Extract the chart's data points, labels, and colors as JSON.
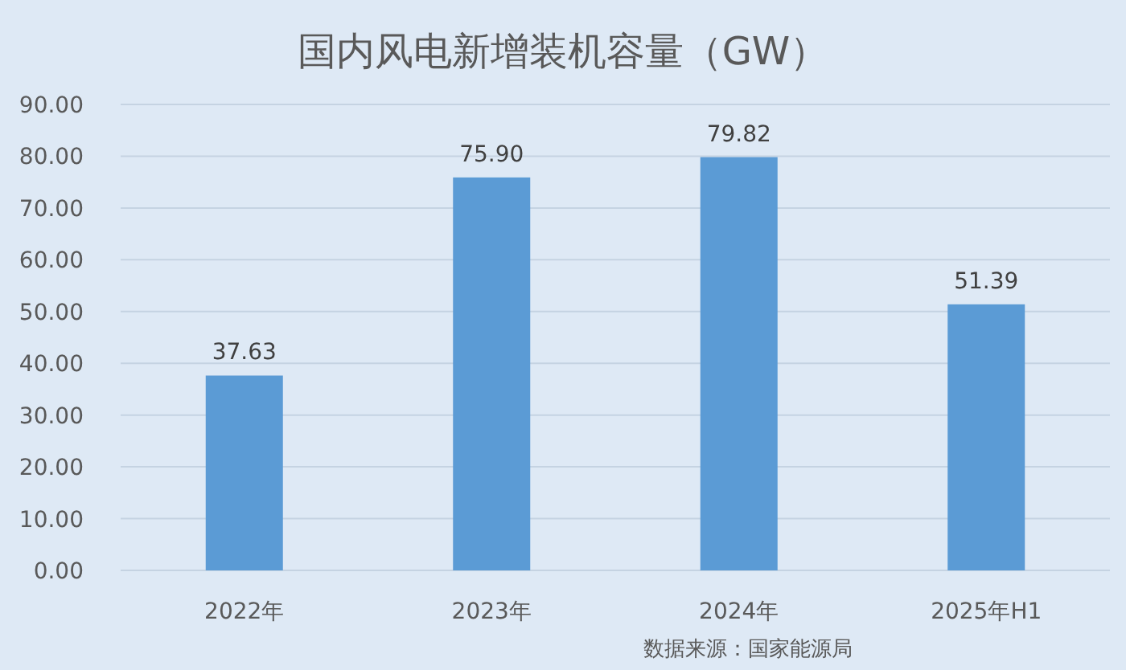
{
  "chart_data": {
    "type": "bar",
    "title": "国内风电新增装机容量（GW）",
    "categories": [
      "2022年",
      "2023年",
      "2024年",
      "2025年H1"
    ],
    "values": [
      37.63,
      75.9,
      79.82,
      51.39
    ],
    "value_labels": [
      "37.63",
      "75.90",
      "79.82",
      "51.39"
    ],
    "color": "#5b9bd5",
    "ylim": [
      0,
      90
    ],
    "yticks": [
      {
        "value": 0,
        "label": "0.00"
      },
      {
        "value": 10,
        "label": "10.00"
      },
      {
        "value": 20,
        "label": "20.00"
      },
      {
        "value": 30,
        "label": "30.00"
      },
      {
        "value": 40,
        "label": "40.00"
      },
      {
        "value": 50,
        "label": "50.00"
      },
      {
        "value": 60,
        "label": "60.00"
      },
      {
        "value": 70,
        "label": "70.00"
      },
      {
        "value": 80,
        "label": "80.00"
      },
      {
        "value": 90,
        "label": "90.00"
      }
    ],
    "grid": "y",
    "annotations": [
      "数据来源：国家能源局"
    ]
  }
}
